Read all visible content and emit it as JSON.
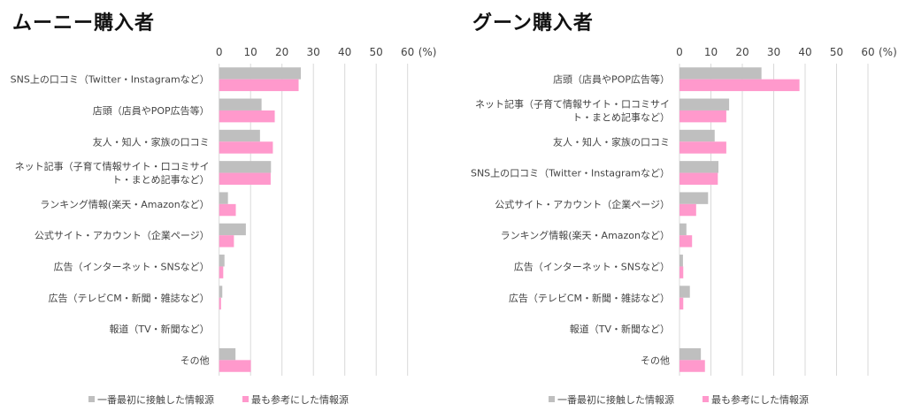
{
  "colors": {
    "first": "#bfbfbf",
    "most": "#ff99cc",
    "grid": "#d9d9d9"
  },
  "chart_data": [
    {
      "type": "bar",
      "orientation": "horizontal",
      "title": "ムーニー購入者",
      "unit_label": "(%)",
      "xlim": [
        0,
        60
      ],
      "ticks": [
        "0",
        "10",
        "20",
        "30",
        "40",
        "50",
        "60"
      ],
      "grid": true,
      "legend": "bottom",
      "categories": [
        [
          "SNS上の口コミ（Twitter・Instagramなど）"
        ],
        [
          "店頭（店員やPOP広告等）"
        ],
        [
          "友人・知人・家族の口コミ"
        ],
        [
          "ネット記事（子育て情報サイト・口コミサイ",
          "ト・まとめ記事など）"
        ],
        [
          "ランキング情報(楽天・Amazonなど）"
        ],
        [
          "公式サイト・アカウント（企業ページ）"
        ],
        [
          "広告（インターネット・SNSなど）"
        ],
        [
          "広告（テレビCM・新聞・雑誌など）"
        ],
        [
          "報道（TV・新聞など）"
        ],
        [
          "その他"
        ]
      ],
      "series": [
        {
          "name": "一番最初に接触した情報源",
          "values": [
            26.0,
            13.5,
            13.0,
            16.5,
            2.8,
            8.5,
            1.7,
            1.0,
            0,
            5.2
          ]
        },
        {
          "name": "最も参考にした情報源",
          "values": [
            25.3,
            17.7,
            17.1,
            16.4,
            5.3,
            4.7,
            1.3,
            0.6,
            0,
            10.1
          ]
        }
      ]
    },
    {
      "type": "bar",
      "orientation": "horizontal",
      "title": "グーン購入者",
      "unit_label": "(%)",
      "xlim": [
        0,
        60
      ],
      "ticks": [
        "0",
        "10",
        "20",
        "30",
        "40",
        "50",
        "60"
      ],
      "grid": true,
      "legend": "bottom",
      "categories": [
        [
          "店頭（店員やPOP広告等）"
        ],
        [
          "ネット記事（子育て情報サイト・口コミサイ",
          "ト・まとめ記事など）"
        ],
        [
          "友人・知人・家族の口コミ"
        ],
        [
          "SNS上の口コミ（Twitter・Instagramなど）"
        ],
        [
          "公式サイト・アカウント（企業ページ）"
        ],
        [
          "ランキング情報(楽天・Amazonなど）"
        ],
        [
          "広告（インターネット・SNSなど）"
        ],
        [
          "広告（テレビCM・新聞・雑誌など）"
        ],
        [
          "報道（TV・新聞など）"
        ],
        [
          "その他"
        ]
      ],
      "series": [
        {
          "name": "一番最初に接触した情報源",
          "values": [
            26.1,
            15.8,
            11.2,
            12.4,
            9.1,
            2.2,
            1.1,
            3.3,
            0,
            6.8
          ]
        },
        {
          "name": "最も参考にした情報源",
          "values": [
            38.2,
            14.9,
            14.9,
            12.2,
            5.3,
            4.0,
            1.2,
            1.2,
            0,
            8.1
          ]
        }
      ]
    }
  ]
}
